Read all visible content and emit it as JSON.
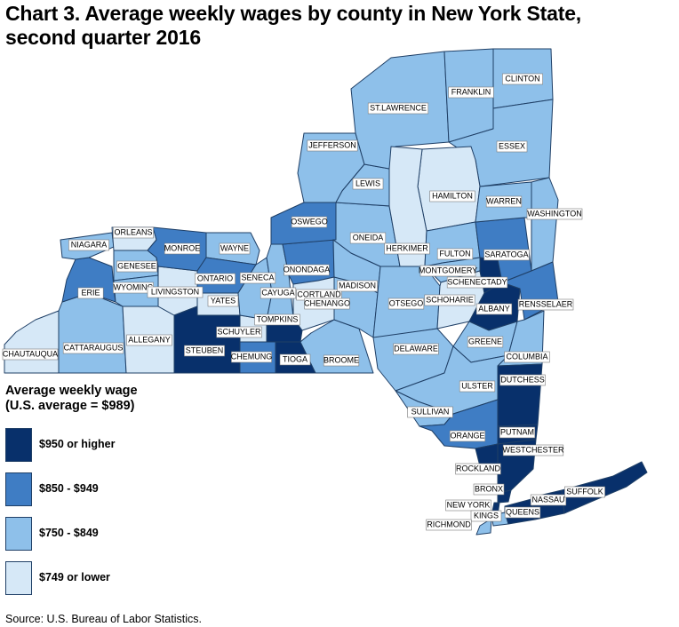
{
  "title_line1": "Chart 3. Average weekly wages by county in New York State,",
  "title_line2": "second quarter 2016",
  "legend": {
    "title_line1": "Average weekly wage",
    "title_line2": "(U.S. average = $989)",
    "items": [
      {
        "label": "$950 or higher",
        "color": "#08306b"
      },
      {
        "label": "$850 - $949",
        "color": "#3f7dc4"
      },
      {
        "label": "$750 - $849",
        "color": "#8ec0ea"
      },
      {
        "label": "$749 or lower",
        "color": "#d6e8f7"
      }
    ]
  },
  "source": "Source: U.S. Bureau of Labor Statistics.",
  "map_data": {
    "counties": [
      {
        "name": "CHAUTAUQUA",
        "wage_class": 4
      },
      {
        "name": "CATTARAUGUS",
        "wage_class": 3
      },
      {
        "name": "ALLEGANY",
        "wage_class": 4
      },
      {
        "name": "ERIE",
        "wage_class": 2
      },
      {
        "name": "NIAGARA",
        "wage_class": 3
      },
      {
        "name": "ORLEANS",
        "wage_class": 4
      },
      {
        "name": "GENESEE",
        "wage_class": 3
      },
      {
        "name": "WYOMING",
        "wage_class": 3
      },
      {
        "name": "LIVINGSTON",
        "wage_class": 4
      },
      {
        "name": "MONROE",
        "wage_class": 2
      },
      {
        "name": "WAYNE",
        "wage_class": 3
      },
      {
        "name": "ONTARIO",
        "wage_class": 2
      },
      {
        "name": "YATES",
        "wage_class": 4
      },
      {
        "name": "STEUBEN",
        "wage_class": 1
      },
      {
        "name": "SCHUYLER",
        "wage_class": 4
      },
      {
        "name": "CHEMUNG",
        "wage_class": 2
      },
      {
        "name": "SENECA",
        "wage_class": 3
      },
      {
        "name": "TOMPKINS",
        "wage_class": 1
      },
      {
        "name": "TIOGA",
        "wage_class": 1
      },
      {
        "name": "CAYUGA",
        "wage_class": 3
      },
      {
        "name": "ONONDAGA",
        "wage_class": 2
      },
      {
        "name": "OSWEGO",
        "wage_class": 2
      },
      {
        "name": "CORTLAND",
        "wage_class": 4
      },
      {
        "name": "BROOME",
        "wage_class": 3
      },
      {
        "name": "CHENANGO",
        "wage_class": 3
      },
      {
        "name": "MADISON",
        "wage_class": 3
      },
      {
        "name": "ONEIDA",
        "wage_class": 3
      },
      {
        "name": "JEFFERSON",
        "wage_class": 3
      },
      {
        "name": "LEWIS",
        "wage_class": 3
      },
      {
        "name": "ST.LAWRENCE",
        "wage_class": 3
      },
      {
        "name": "FRANKLIN",
        "wage_class": 3
      },
      {
        "name": "CLINTON",
        "wage_class": 3
      },
      {
        "name": "ESSEX",
        "wage_class": 3
      },
      {
        "name": "HAMILTON",
        "wage_class": 4
      },
      {
        "name": "HERKIMER",
        "wage_class": 4
      },
      {
        "name": "OTSEGO",
        "wage_class": 3
      },
      {
        "name": "DELAWARE",
        "wage_class": 3
      },
      {
        "name": "FULTON",
        "wage_class": 3
      },
      {
        "name": "MONTGOMERY",
        "wage_class": 3
      },
      {
        "name": "SCHOHARIE",
        "wage_class": 4
      },
      {
        "name": "SCHENECTADY",
        "wage_class": 1
      },
      {
        "name": "ALBANY",
        "wage_class": 1
      },
      {
        "name": "SARATOGA",
        "wage_class": 2
      },
      {
        "name": "WARREN",
        "wage_class": 3
      },
      {
        "name": "WASHINGTON",
        "wage_class": 3
      },
      {
        "name": "RENSSELAER",
        "wage_class": 2
      },
      {
        "name": "GREENE",
        "wage_class": 3
      },
      {
        "name": "COLUMBIA",
        "wage_class": 3
      },
      {
        "name": "ULSTER",
        "wage_class": 3
      },
      {
        "name": "DUTCHESS",
        "wage_class": 1
      },
      {
        "name": "SULLIVAN",
        "wage_class": 3
      },
      {
        "name": "ORANGE",
        "wage_class": 2
      },
      {
        "name": "PUTNAM",
        "wage_class": 1
      },
      {
        "name": "ROCKLAND",
        "wage_class": 1
      },
      {
        "name": "WESTCHESTER",
        "wage_class": 1
      },
      {
        "name": "BRONX",
        "wage_class": 1
      },
      {
        "name": "NEW YORK",
        "wage_class": 1
      },
      {
        "name": "KINGS",
        "wage_class": 3
      },
      {
        "name": "QUEENS",
        "wage_class": 1
      },
      {
        "name": "RICHMOND",
        "wage_class": 3
      },
      {
        "name": "NASSAU",
        "wage_class": 1
      },
      {
        "name": "SUFFOLK",
        "wage_class": 1
      }
    ]
  }
}
